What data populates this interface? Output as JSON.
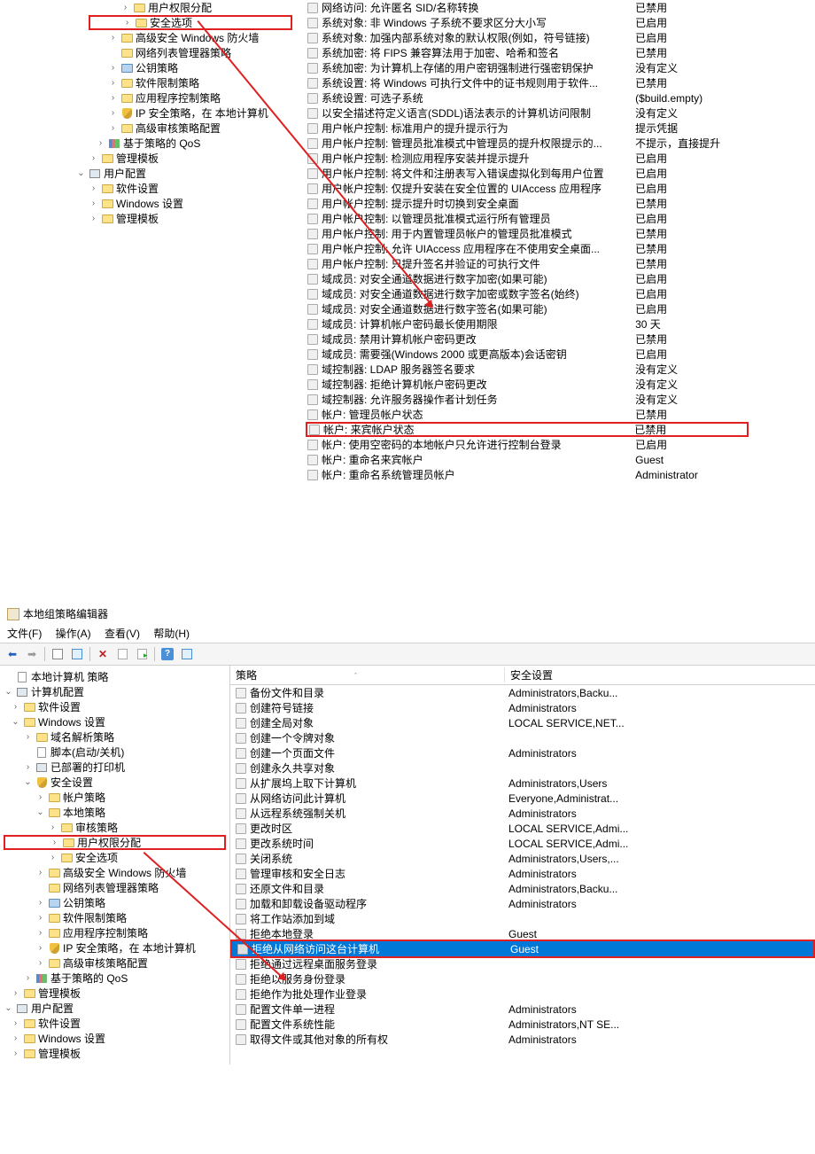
{
  "colors": {
    "highlight": "#e02020",
    "selection_bg": "#0078d7",
    "selection_fg": "#ffffff"
  },
  "top": {
    "tree": [
      {
        "indent": 3,
        "exp": ">",
        "icon": "folder",
        "label": "用户权限分配"
      },
      {
        "indent": 3,
        "exp": ">",
        "icon": "folder",
        "label": "安全选项",
        "highlight": true
      },
      {
        "indent": 2,
        "exp": ">",
        "icon": "folder",
        "label": "高级安全 Windows 防火墙"
      },
      {
        "indent": 2,
        "exp": "",
        "icon": "folder",
        "label": "网络列表管理器策略"
      },
      {
        "indent": 2,
        "exp": ">",
        "icon": "folder-blue",
        "label": "公钥策略"
      },
      {
        "indent": 2,
        "exp": ">",
        "icon": "folder",
        "label": "软件限制策略"
      },
      {
        "indent": 2,
        "exp": ">",
        "icon": "folder",
        "label": "应用程序控制策略"
      },
      {
        "indent": 2,
        "exp": ">",
        "icon": "shield",
        "label": "IP 安全策略，在 本地计算机"
      },
      {
        "indent": 2,
        "exp": ">",
        "icon": "folder",
        "label": "高级审核策略配置"
      },
      {
        "indent": 1,
        "exp": ">",
        "icon": "bars",
        "label": "基于策略的 QoS"
      },
      {
        "indent": 0,
        "exp": ">",
        "icon": "folder",
        "label": "管理模板"
      },
      {
        "indent": -1,
        "exp": "v",
        "icon": "comp",
        "label": "用户配置"
      },
      {
        "indent": 0,
        "exp": ">",
        "icon": "folder",
        "label": "软件设置"
      },
      {
        "indent": 0,
        "exp": ">",
        "icon": "folder",
        "label": "Windows 设置"
      },
      {
        "indent": 0,
        "exp": ">",
        "icon": "folder",
        "label": "管理模板"
      }
    ],
    "list": [
      {
        "name": "网络访问: 允许匿名 SID/名称转换",
        "val": "已禁用"
      },
      {
        "name": "系统对象: 非 Windows 子系统不要求区分大小写",
        "val": "已启用"
      },
      {
        "name": "系统对象: 加强内部系统对象的默认权限(例如，符号链接)",
        "val": "已启用"
      },
      {
        "name": "系统加密: 将 FIPS 兼容算法用于加密、哈希和签名",
        "val": "已禁用"
      },
      {
        "name": "系统加密: 为计算机上存储的用户密钥强制进行强密钥保护",
        "val": "没有定义"
      },
      {
        "name": "系统设置: 将 Windows 可执行文件中的证书规则用于软件...",
        "val": "已禁用"
      },
      {
        "name": "系统设置: 可选子系统",
        "val": "($build.empty)"
      },
      {
        "name": "以安全描述符定义语言(SDDL)语法表示的计算机访问限制",
        "val": "没有定义"
      },
      {
        "name": "用户帐户控制: 标准用户的提升提示行为",
        "val": "提示凭据"
      },
      {
        "name": "用户帐户控制: 管理员批准模式中管理员的提升权限提示的...",
        "val": "不提示，直接提升"
      },
      {
        "name": "用户帐户控制: 检测应用程序安装并提示提升",
        "val": "已启用"
      },
      {
        "name": "用户帐户控制: 将文件和注册表写入错误虚拟化到每用户位置",
        "val": "已启用"
      },
      {
        "name": "用户帐户控制: 仅提升安装在安全位置的 UIAccess 应用程序",
        "val": "已启用"
      },
      {
        "name": "用户帐户控制: 提示提升时切换到安全桌面",
        "val": "已禁用"
      },
      {
        "name": "用户帐户控制: 以管理员批准模式运行所有管理员",
        "val": "已启用"
      },
      {
        "name": "用户帐户控制: 用于内置管理员帐户的管理员批准模式",
        "val": "已禁用"
      },
      {
        "name": "用户帐户控制: 允许 UIAccess 应用程序在不使用安全桌面...",
        "val": "已禁用"
      },
      {
        "name": "用户帐户控制: 只提升签名并验证的可执行文件",
        "val": "已禁用"
      },
      {
        "name": "域成员: 对安全通道数据进行数字加密(如果可能)",
        "val": "已启用"
      },
      {
        "name": "域成员: 对安全通道数据进行数字加密或数字签名(始终)",
        "val": "已启用"
      },
      {
        "name": "域成员: 对安全通道数据进行数字签名(如果可能)",
        "val": "已启用"
      },
      {
        "name": "域成员: 计算机帐户密码最长使用期限",
        "val": "30 天"
      },
      {
        "name": "域成员: 禁用计算机帐户密码更改",
        "val": "已禁用"
      },
      {
        "name": "域成员: 需要强(Windows 2000 或更高版本)会话密钥",
        "val": "已启用"
      },
      {
        "name": "域控制器: LDAP 服务器签名要求",
        "val": "没有定义"
      },
      {
        "name": "域控制器: 拒绝计算机帐户密码更改",
        "val": "没有定义"
      },
      {
        "name": "域控制器: 允许服务器操作者计划任务",
        "val": "没有定义"
      },
      {
        "name": "帐户: 管理员帐户状态",
        "val": "已禁用"
      },
      {
        "name": "帐户: 来宾帐户状态",
        "val": "已禁用",
        "highlight": true
      },
      {
        "name": "帐户: 使用空密码的本地帐户只允许进行控制台登录",
        "val": "已启用"
      },
      {
        "name": "帐户: 重命名来宾帐户",
        "val": "Guest"
      },
      {
        "name": "帐户: 重命名系统管理员帐户",
        "val": "Administrator"
      }
    ]
  },
  "bottom": {
    "window_title": "本地组策略编辑器",
    "menu": [
      "文件(F)",
      "操作(A)",
      "查看(V)",
      "帮助(H)"
    ],
    "cols": {
      "c1": "策略",
      "c2": "安全设置"
    },
    "tree": [
      {
        "indent": 0,
        "exp": "",
        "icon": "doc",
        "label": "本地计算机 策略"
      },
      {
        "indent": 0,
        "exp": "v",
        "icon": "comp",
        "label": "计算机配置"
      },
      {
        "indent": 1,
        "exp": ">",
        "icon": "folder",
        "label": "软件设置"
      },
      {
        "indent": 1,
        "exp": "v",
        "icon": "folder",
        "label": "Windows 设置"
      },
      {
        "indent": 2,
        "exp": ">",
        "icon": "folder",
        "label": "域名解析策略"
      },
      {
        "indent": 2,
        "exp": "",
        "icon": "doc",
        "label": "脚本(启动/关机)"
      },
      {
        "indent": 2,
        "exp": ">",
        "icon": "comp",
        "label": "已部署的打印机"
      },
      {
        "indent": 2,
        "exp": "v",
        "icon": "shield",
        "label": "安全设置"
      },
      {
        "indent": 3,
        "exp": ">",
        "icon": "folder",
        "label": "帐户策略"
      },
      {
        "indent": 3,
        "exp": "v",
        "icon": "folder",
        "label": "本地策略"
      },
      {
        "indent": 4,
        "exp": ">",
        "icon": "folder",
        "label": "审核策略"
      },
      {
        "indent": 4,
        "exp": ">",
        "icon": "folder",
        "label": "用户权限分配",
        "highlight": true
      },
      {
        "indent": 4,
        "exp": ">",
        "icon": "folder",
        "label": "安全选项"
      },
      {
        "indent": 3,
        "exp": ">",
        "icon": "folder",
        "label": "高级安全 Windows 防火墙"
      },
      {
        "indent": 3,
        "exp": "",
        "icon": "folder",
        "label": "网络列表管理器策略"
      },
      {
        "indent": 3,
        "exp": ">",
        "icon": "folder-blue",
        "label": "公钥策略"
      },
      {
        "indent": 3,
        "exp": ">",
        "icon": "folder",
        "label": "软件限制策略"
      },
      {
        "indent": 3,
        "exp": ">",
        "icon": "folder",
        "label": "应用程序控制策略"
      },
      {
        "indent": 3,
        "exp": ">",
        "icon": "shield",
        "label": "IP 安全策略，在 本地计算机"
      },
      {
        "indent": 3,
        "exp": ">",
        "icon": "folder",
        "label": "高级审核策略配置"
      },
      {
        "indent": 2,
        "exp": ">",
        "icon": "bars",
        "label": "基于策略的 QoS"
      },
      {
        "indent": 1,
        "exp": ">",
        "icon": "folder",
        "label": "管理模板"
      },
      {
        "indent": 0,
        "exp": "v",
        "icon": "comp",
        "label": "用户配置"
      },
      {
        "indent": 1,
        "exp": ">",
        "icon": "folder",
        "label": "软件设置"
      },
      {
        "indent": 1,
        "exp": ">",
        "icon": "folder",
        "label": "Windows 设置"
      },
      {
        "indent": 1,
        "exp": ">",
        "icon": "folder",
        "label": "管理模板"
      }
    ],
    "list": [
      {
        "name": "备份文件和目录",
        "val": "Administrators,Backu..."
      },
      {
        "name": "创建符号链接",
        "val": "Administrators"
      },
      {
        "name": "创建全局对象",
        "val": "LOCAL SERVICE,NET..."
      },
      {
        "name": "创建一个令牌对象",
        "val": ""
      },
      {
        "name": "创建一个页面文件",
        "val": "Administrators"
      },
      {
        "name": "创建永久共享对象",
        "val": ""
      },
      {
        "name": "从扩展坞上取下计算机",
        "val": "Administrators,Users"
      },
      {
        "name": "从网络访问此计算机",
        "val": "Everyone,Administrat..."
      },
      {
        "name": "从远程系统强制关机",
        "val": "Administrators"
      },
      {
        "name": "更改时区",
        "val": "LOCAL SERVICE,Admi..."
      },
      {
        "name": "更改系统时间",
        "val": "LOCAL SERVICE,Admi..."
      },
      {
        "name": "关闭系统",
        "val": "Administrators,Users,..."
      },
      {
        "name": "管理审核和安全日志",
        "val": "Administrators"
      },
      {
        "name": "还原文件和目录",
        "val": "Administrators,Backu..."
      },
      {
        "name": "加载和卸载设备驱动程序",
        "val": "Administrators"
      },
      {
        "name": "将工作站添加到域",
        "val": ""
      },
      {
        "name": "拒绝本地登录",
        "val": "Guest"
      },
      {
        "name": "拒绝从网络访问这台计算机",
        "val": "Guest",
        "selected": true,
        "highlight": true
      },
      {
        "name": "拒绝通过远程桌面服务登录",
        "val": ""
      },
      {
        "name": "拒绝以服务身份登录",
        "val": ""
      },
      {
        "name": "拒绝作为批处理作业登录",
        "val": ""
      },
      {
        "name": "配置文件单一进程",
        "val": "Administrators"
      },
      {
        "name": "配置文件系统性能",
        "val": "Administrators,NT SE..."
      },
      {
        "name": "取得文件或其他对象的所有权",
        "val": "Administrators"
      }
    ]
  }
}
